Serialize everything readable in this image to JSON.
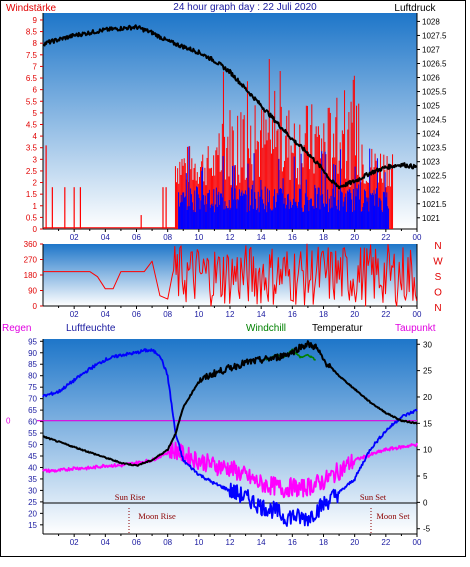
{
  "header": {
    "left_title": "Windstärke",
    "center_title": "24 hour graph day : 22 Juli 2020",
    "right_title": "Luftdruck"
  },
  "chart_data": [
    {
      "type": "line",
      "title": "24 hour graph day : 22 Juli 2020",
      "x_ticks": [
        "02",
        "04",
        "06",
        "08",
        "10",
        "12",
        "14",
        "16",
        "18",
        "20",
        "22",
        "00"
      ],
      "left_axis": {
        "label": "Windstärke",
        "ticks": [
          "0",
          "0.5",
          "1",
          "1.5",
          "2",
          "2.5",
          "3",
          "3.5",
          "4",
          "4.5",
          "5",
          "5.5",
          "6",
          "6.5",
          "7",
          "7.5",
          "8",
          "8.5",
          "9"
        ],
        "range": [
          0,
          9.3
        ]
      },
      "right_axis": {
        "label": "Luftdruck",
        "ticks": [
          "1021",
          "1021.5",
          "1022",
          "1022.5",
          "1023",
          "1023.5",
          "1024",
          "1024.5",
          "1025",
          "1025.5",
          "1026",
          "1026.5",
          "1027",
          "1027.5",
          "1028"
        ],
        "range": [
          1020.6,
          1028.3
        ]
      },
      "series": [
        {
          "name": "Luftdruck",
          "color": "#000000",
          "x": [
            0,
            2,
            4,
            6,
            7,
            8,
            9,
            10,
            11,
            12,
            13,
            14,
            15,
            16,
            17,
            18,
            18.5,
            19,
            20,
            21,
            22,
            23,
            24
          ],
          "values": [
            1027.2,
            1027.5,
            1027.7,
            1027.8,
            1027.6,
            1027.3,
            1027.1,
            1026.9,
            1026.6,
            1026.2,
            1025.6,
            1025.0,
            1024.4,
            1023.8,
            1023.3,
            1022.7,
            1022.3,
            1022.1,
            1022.3,
            1022.6,
            1022.8,
            1022.9,
            1022.8
          ]
        },
        {
          "color": "#ff0000",
          "note_hours": [
            8.5,
            22.5
          ]
        },
        {
          "color": "#0000ff"
        }
      ]
    },
    {
      "type": "line",
      "x_ticks": [
        "02",
        "04",
        "06",
        "08",
        "10",
        "12",
        "14",
        "16",
        "18",
        "20",
        "22",
        "00"
      ],
      "left_axis": {
        "ticks": [
          "0",
          "90",
          "180",
          "270",
          "360"
        ],
        "range": [
          0,
          360
        ]
      },
      "right_axis": {
        "ticks": [
          "N",
          "W",
          "S",
          "O",
          "N"
        ]
      },
      "series": [
        {
          "color": "#ff0000",
          "x": [
            0,
            0.5,
            1,
            1.5,
            2,
            2.5,
            3,
            3.5,
            4,
            4.5,
            5,
            5.5,
            6,
            6.5,
            7,
            7.5,
            8
          ],
          "values": [
            200,
            200,
            200,
            200,
            200,
            200,
            200,
            170,
            100,
            100,
            200,
            200,
            200,
            200,
            260,
            60,
            40
          ]
        }
      ]
    },
    {
      "type": "line",
      "x_ticks": [
        "02",
        "04",
        "06",
        "08",
        "10",
        "12",
        "14",
        "16",
        "18",
        "20",
        "22",
        "00"
      ],
      "left_axis": {
        "label": "Luftfeuchte",
        "ticks": [
          "15",
          "20",
          "25",
          "30",
          "35",
          "40",
          "45",
          "50",
          "55",
          "60",
          "65",
          "70",
          "75",
          "80",
          "85",
          "90",
          "95"
        ],
        "range": [
          11,
          96
        ]
      },
      "right_axis": {
        "label": "Temperatur",
        "ticks": [
          "-5",
          "0",
          "5",
          "10",
          "15",
          "20",
          "25",
          "30"
        ],
        "range": [
          -6,
          31
        ]
      },
      "legend": [
        "Regen",
        "Luftfeuchte",
        "Windchill",
        "Temperatur",
        "Taupunkt"
      ],
      "marker_zero_label": "0",
      "annotations": [
        "Sun Rise",
        "Sun Set",
        "Moon Rise",
        "Moon Set"
      ],
      "series": [
        {
          "name": "Temperatur",
          "color": "#000000",
          "x": [
            0,
            1,
            2,
            3,
            4,
            5,
            6,
            7,
            7.5,
            8,
            8.5,
            9,
            10,
            11,
            12,
            13,
            14,
            15,
            16,
            16.5,
            17,
            17.5,
            18,
            19,
            20,
            21,
            22,
            23,
            24
          ],
          "values": [
            12.5,
            11.5,
            10.5,
            9.5,
            8.5,
            7.5,
            7,
            8,
            9,
            10,
            13,
            18,
            23,
            24.5,
            25.5,
            26.5,
            27,
            27.5,
            28.5,
            29.5,
            30,
            29.5,
            27,
            24,
            21.5,
            19,
            17,
            15.5,
            15
          ]
        },
        {
          "name": "Windchill",
          "color": "#008000",
          "x": [
            14.3,
            15,
            15.5,
            16,
            16.5,
            17,
            17.5
          ],
          "values": [
            27,
            28,
            27.5,
            29,
            27.5,
            28,
            27
          ]
        },
        {
          "name": "Luftfeuchte",
          "color": "#0000ff",
          "x": [
            0,
            1,
            2,
            3,
            4,
            5,
            6,
            6.5,
            7,
            7.5,
            8,
            8.2,
            8.5,
            9,
            10,
            11,
            12,
            13,
            14,
            15,
            15.5,
            16,
            16.5,
            17,
            17.5,
            18,
            19,
            20,
            21,
            22,
            23,
            24
          ],
          "values": [
            71,
            73,
            78,
            83,
            87,
            89,
            90,
            91,
            91,
            89,
            80,
            70,
            55,
            43,
            37,
            33,
            30,
            27,
            23,
            21,
            18,
            19,
            18,
            18,
            21,
            24,
            29,
            35,
            48,
            56,
            62,
            65
          ]
        },
        {
          "name": "Taupunkt",
          "color": "#ff00ff",
          "x": [
            0,
            1,
            2,
            3,
            4,
            5,
            6,
            7,
            8,
            8.5,
            9,
            10,
            11,
            12,
            13,
            14,
            15,
            15.5,
            16,
            16.5,
            17,
            17.5,
            18,
            19,
            20,
            21,
            22,
            23,
            24
          ],
          "values": [
            6,
            6,
            6.5,
            6.5,
            7,
            7,
            7.5,
            8,
            9.5,
            10,
            9,
            8,
            7,
            6.5,
            5,
            3.5,
            3,
            2.5,
            3,
            2.5,
            3,
            3.5,
            4,
            6,
            8,
            9,
            10,
            10.5,
            11
          ]
        }
      ]
    }
  ]
}
